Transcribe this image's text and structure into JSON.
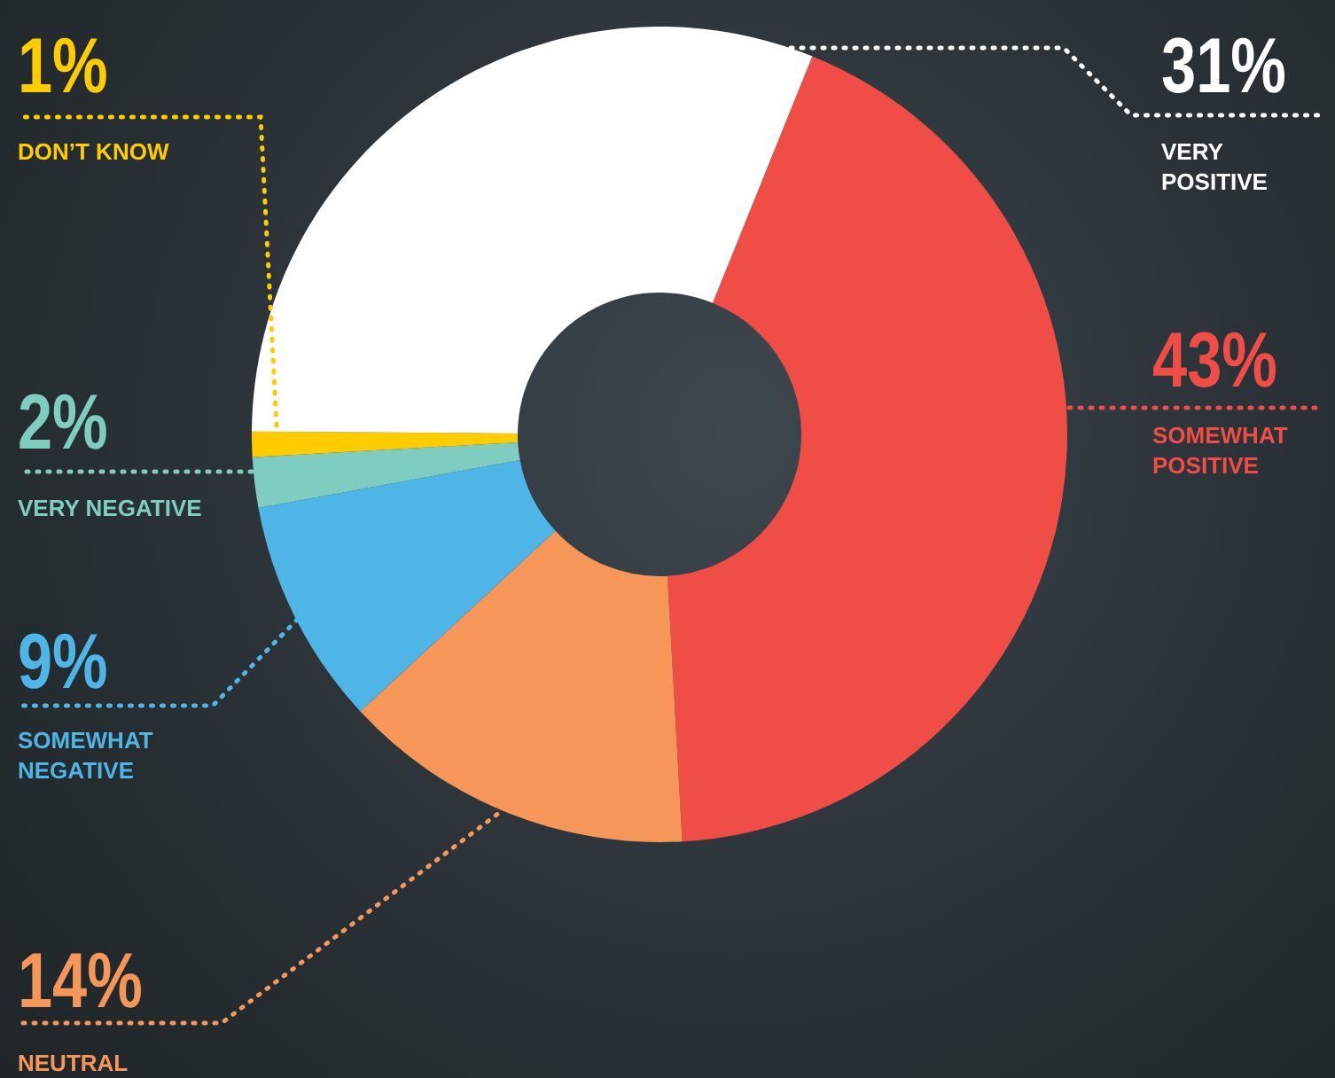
{
  "chart_data": {
    "type": "donut",
    "categories": [
      "SOMEWHAT POSITIVE",
      "NEUTRAL",
      "SOMEWHAT NEGATIVE",
      "VERY NEGATIVE",
      "DON’T KNOW",
      "VERY POSITIVE"
    ],
    "values": [
      43,
      14,
      9,
      2,
      1,
      31
    ],
    "value_labels": [
      "43%",
      "14%",
      "9%",
      "2%",
      "1%",
      "31%"
    ],
    "colors": [
      "#ef4d45",
      "#f69658",
      "#4fb5e6",
      "#7ecdc0",
      "#ffcc00",
      "#ffffff"
    ],
    "legend": false
  }
}
